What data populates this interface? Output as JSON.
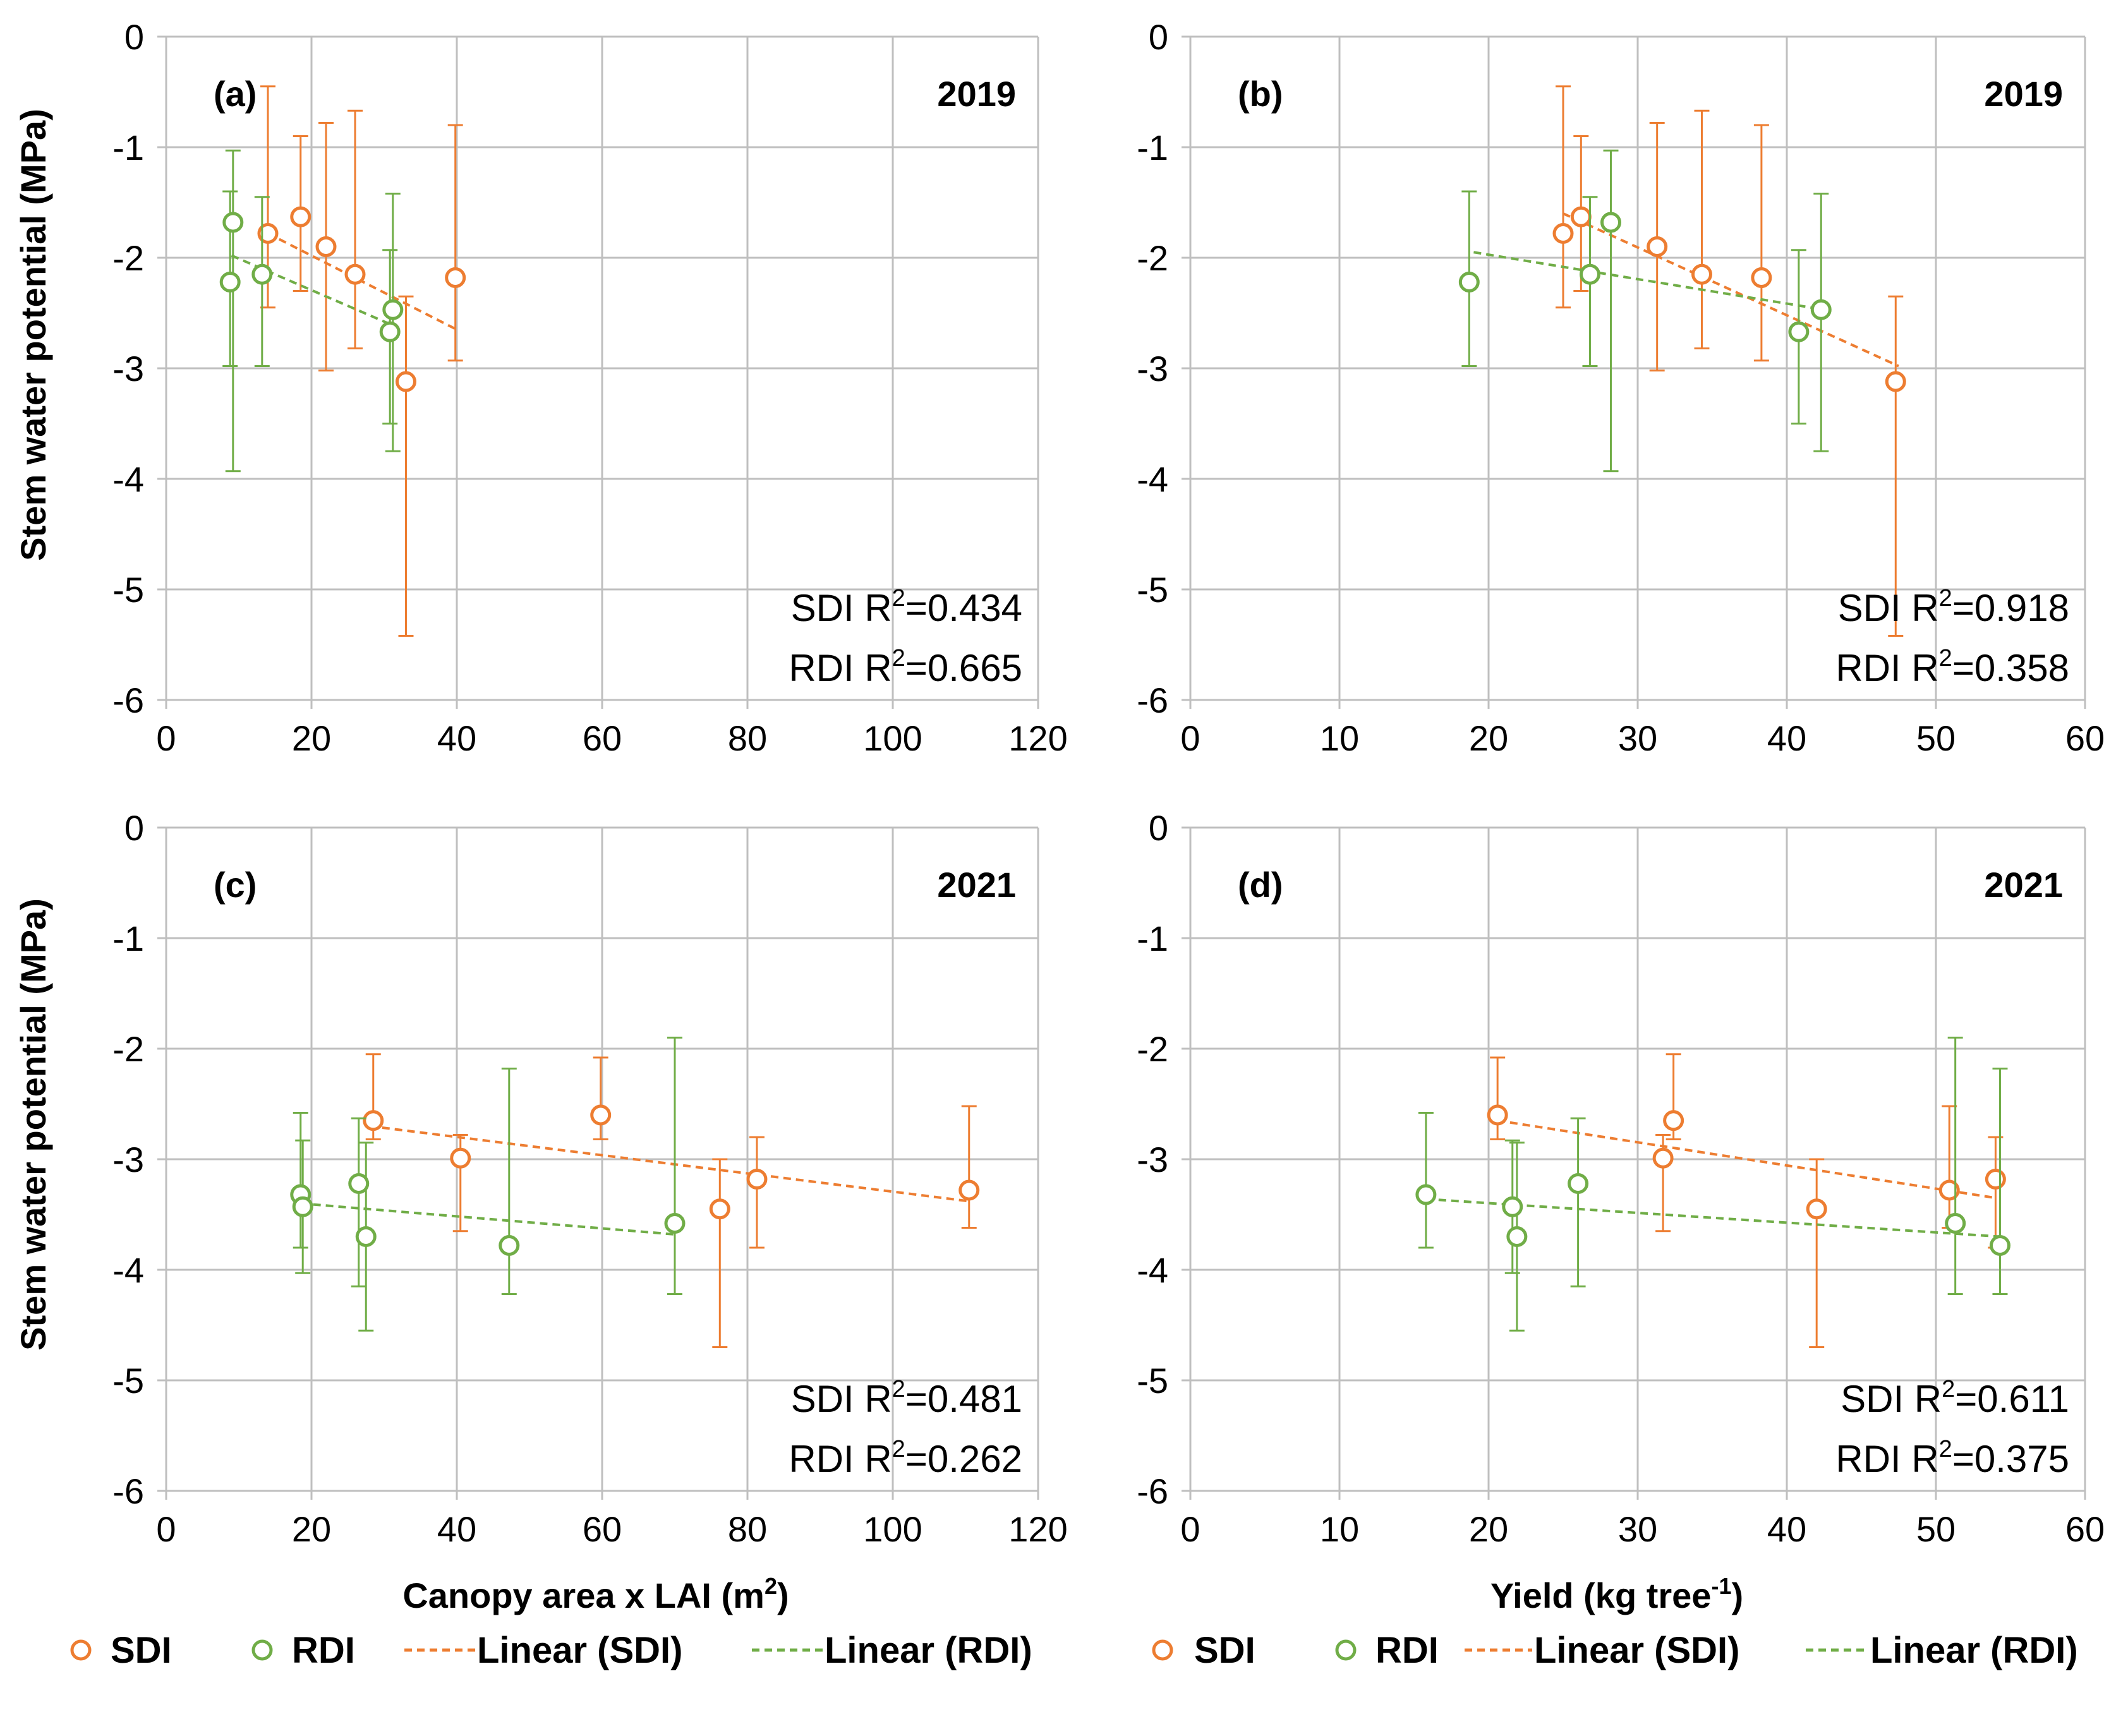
{
  "colors": {
    "sdi": "#ED7D31",
    "rdi": "#70AD47",
    "grid": "#BFBFBF",
    "text": "#000000"
  },
  "y_axis_label": "Stem water potential (MPa)",
  "x_axis_labels": {
    "canopy": {
      "main": "Canopy area x LAI (m",
      "sup": "2",
      "end": ")"
    },
    "yield": {
      "main": "Yield (kg tree",
      "sup": "-1",
      "end": ")"
    }
  },
  "legend": {
    "sdi": "SDI",
    "rdi": "RDI",
    "lin_sdi": "Linear (SDI)",
    "lin_rdi": "Linear (RDI)"
  },
  "chart_data": [
    {
      "type": "scatter",
      "panel": "(a)",
      "year": "2019",
      "xlim": [
        0,
        120
      ],
      "xticks": [
        0,
        20,
        40,
        60,
        80,
        100,
        120
      ],
      "ylim": [
        -6,
        0
      ],
      "yticks": [
        0,
        -1,
        -2,
        -3,
        -4,
        -5,
        -6
      ],
      "grid": true,
      "series": [
        {
          "name": "SDI",
          "color": "#ED7D31",
          "points": [
            [
              14,
              -1.78,
              -0.45,
              -2.45
            ],
            [
              18.5,
              -1.63,
              -0.9,
              -2.3
            ],
            [
              22,
              -1.9,
              -0.78,
              -3.02
            ],
            [
              26,
              -2.15,
              -0.67,
              -2.82
            ],
            [
              33,
              -3.12,
              -2.35,
              -5.42
            ],
            [
              39.8,
              -2.18,
              -0.8,
              -2.93
            ]
          ],
          "trend": [
            [
              14,
              -1.78
            ],
            [
              40,
              -2.65
            ]
          ],
          "r2": "0.434"
        },
        {
          "name": "RDI",
          "color": "#70AD47",
          "points": [
            [
              8.8,
              -2.22,
              -1.4,
              -2.98
            ],
            [
              9.2,
              -1.68,
              -1.03,
              -3.93
            ],
            [
              13.2,
              -2.15,
              -1.45,
              -2.98
            ],
            [
              31.2,
              -2.47,
              -1.42,
              -3.75
            ],
            [
              30.8,
              -2.67,
              -1.93,
              -3.5
            ]
          ],
          "trend": [
            [
              9,
              -1.98
            ],
            [
              31.5,
              -2.62
            ]
          ],
          "r2": "0.665"
        }
      ]
    },
    {
      "type": "scatter",
      "panel": "(b)",
      "year": "2019",
      "xlim": [
        0,
        60
      ],
      "xticks": [
        0,
        10,
        20,
        30,
        40,
        50,
        60
      ],
      "ylim": [
        -6,
        0
      ],
      "yticks": [
        0,
        -1,
        -2,
        -3,
        -4,
        -5,
        -6
      ],
      "grid": true,
      "series": [
        {
          "name": "SDI",
          "color": "#ED7D31",
          "points": [
            [
              25,
              -1.78,
              -0.45,
              -2.45
            ],
            [
              26.2,
              -1.63,
              -0.9,
              -2.3
            ],
            [
              31.3,
              -1.9,
              -0.78,
              -3.02
            ],
            [
              34.3,
              -2.15,
              -0.67,
              -2.82
            ],
            [
              38.3,
              -2.18,
              -0.8,
              -2.93
            ],
            [
              47.3,
              -3.12,
              -2.35,
              -5.42
            ]
          ],
          "trend": [
            [
              25,
              -1.6
            ],
            [
              47.5,
              -2.98
            ]
          ],
          "r2": "0.918"
        },
        {
          "name": "RDI",
          "color": "#70AD47",
          "points": [
            [
              18.7,
              -2.22,
              -1.4,
              -2.98
            ],
            [
              26.8,
              -2.15,
              -1.45,
              -2.98
            ],
            [
              28.2,
              -1.68,
              -1.03,
              -3.93
            ],
            [
              40.8,
              -2.67,
              -1.93,
              -3.5
            ],
            [
              42.3,
              -2.47,
              -1.42,
              -3.75
            ]
          ],
          "trend": [
            [
              19,
              -1.95
            ],
            [
              42.5,
              -2.47
            ]
          ],
          "r2": "0.358"
        }
      ]
    },
    {
      "type": "scatter",
      "panel": "(c)",
      "year": "2021",
      "xlim": [
        0,
        120
      ],
      "xticks": [
        0,
        20,
        40,
        60,
        80,
        100,
        120
      ],
      "ylim": [
        -6,
        0
      ],
      "yticks": [
        0,
        -1,
        -2,
        -3,
        -4,
        -5,
        -6
      ],
      "grid": true,
      "series": [
        {
          "name": "SDI",
          "color": "#ED7D31",
          "points": [
            [
              28.5,
              -2.65,
              -2.05,
              -2.82
            ],
            [
              40.5,
              -2.99,
              -2.78,
              -3.65
            ],
            [
              59.8,
              -2.6,
              -2.08,
              -2.82
            ],
            [
              76.2,
              -3.45,
              -3.0,
              -4.7
            ],
            [
              81.3,
              -3.18,
              -2.8,
              -3.8
            ],
            [
              110.5,
              -3.28,
              -2.52,
              -3.62
            ]
          ],
          "trend": [
            [
              28,
              -2.7
            ],
            [
              110.5,
              -3.38
            ]
          ],
          "r2": "0.481"
        },
        {
          "name": "RDI",
          "color": "#70AD47",
          "points": [
            [
              18.5,
              -3.32,
              -2.58,
              -3.8
            ],
            [
              18.8,
              -3.43,
              -2.83,
              -4.03
            ],
            [
              26.5,
              -3.22,
              -2.63,
              -4.15
            ],
            [
              27.5,
              -3.7,
              -2.85,
              -4.55
            ],
            [
              47.2,
              -3.78,
              -2.18,
              -4.22
            ],
            [
              70,
              -3.58,
              -1.9,
              -4.22
            ]
          ],
          "trend": [
            [
              18.5,
              -3.4
            ],
            [
              70,
              -3.68
            ]
          ],
          "r2": "0.262"
        }
      ]
    },
    {
      "type": "scatter",
      "panel": "(d)",
      "year": "2021",
      "xlim": [
        0,
        60
      ],
      "xticks": [
        0,
        10,
        20,
        30,
        40,
        50,
        60
      ],
      "ylim": [
        -6,
        0
      ],
      "yticks": [
        0,
        -1,
        -2,
        -3,
        -4,
        -5,
        -6
      ],
      "grid": true,
      "series": [
        {
          "name": "SDI",
          "color": "#ED7D31",
          "points": [
            [
              20.6,
              -2.6,
              -2.08,
              -2.82
            ],
            [
              31.7,
              -2.99,
              -2.78,
              -3.65
            ],
            [
              32.4,
              -2.65,
              -2.05,
              -2.82
            ],
            [
              42,
              -3.45,
              -3.0,
              -4.7
            ],
            [
              50.9,
              -3.28,
              -2.52,
              -3.62
            ],
            [
              54,
              -3.18,
              -2.8,
              -3.8
            ]
          ],
          "trend": [
            [
              20.6,
              -2.65
            ],
            [
              54,
              -3.35
            ]
          ],
          "r2": "0.611"
        },
        {
          "name": "RDI",
          "color": "#70AD47",
          "points": [
            [
              15.8,
              -3.32,
              -2.58,
              -3.8
            ],
            [
              21.6,
              -3.43,
              -2.83,
              -4.03
            ],
            [
              21.9,
              -3.7,
              -2.85,
              -4.55
            ],
            [
              26,
              -3.22,
              -2.63,
              -4.15
            ],
            [
              51.3,
              -3.58,
              -1.9,
              -4.22
            ],
            [
              54.3,
              -3.78,
              -2.18,
              -4.22
            ]
          ],
          "trend": [
            [
              15.8,
              -3.36
            ],
            [
              54.3,
              -3.7
            ]
          ],
          "r2": "0.375"
        }
      ]
    }
  ]
}
